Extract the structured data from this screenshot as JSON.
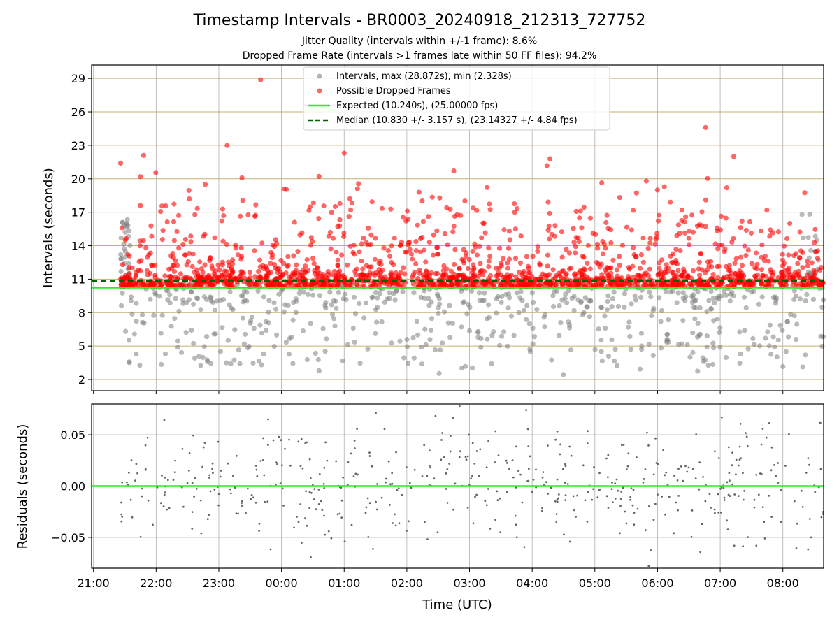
{
  "chart_data": [
    {
      "type": "scatter",
      "title": "Timestamp Intervals - BR0003_20240918_212313_727752",
      "subtitle_lines": [
        "Jitter Quality (intervals within +/-1 frame): 8.6%",
        "Dropped Frame Rate (intervals >1 frames late within 50 FF files): 94.2%"
      ],
      "ylabel": "Intervals (seconds)",
      "ylim": [
        1.0,
        30.2
      ],
      "yticks": [
        2,
        5,
        8,
        11,
        14,
        17,
        20,
        23,
        26,
        29
      ],
      "ytick_labels": [
        "2",
        "5",
        "8",
        "11",
        "14",
        "17",
        "20",
        "23",
        "26",
        "29"
      ],
      "xlim_hours": [
        -0.03,
        11.65
      ],
      "x_origin": "2024-09-18 21:00 UTC",
      "grid": true,
      "legend_position": "top-center",
      "legend": [
        "Intervals, max (28.872s), min (2.328s)",
        "Possible Dropped Frames",
        "Expected (10.240s), (25.00000 fps)",
        "Median (10.830 +/- 3.157 s), (23.14327 +/- 4.84 fps)"
      ],
      "series": [
        {
          "kind": "scatter",
          "color": "#808080",
          "values_summary": {
            "max": 28.872,
            "min": 2.328
          },
          "note": "dense scatter of intervals between 2 and 21 s spanning 21:26 to 08:38"
        },
        {
          "kind": "scatter",
          "color": "#ff0000",
          "note": "dense scatter of intervals mostly between 10.2 and 22 s"
        },
        {
          "kind": "hline",
          "color": "#22ee22",
          "y": 10.24
        },
        {
          "kind": "hline",
          "color": "#006400",
          "dashed": true,
          "y": 10.83
        }
      ],
      "outliers": [
        {
          "x_time": "23:40",
          "y": 28.87
        },
        {
          "x_time": "06:46",
          "y": 24.6
        },
        {
          "x_time": "23:08",
          "y": 22.98
        },
        {
          "x_time": "01:00",
          "y": 22.3
        },
        {
          "x_time": "21:48",
          "y": 22.1
        },
        {
          "x_time": "07:13",
          "y": 22.0
        },
        {
          "x_time": "04:17",
          "y": 21.8
        },
        {
          "x_time": "21:26",
          "y": 21.4
        }
      ]
    },
    {
      "type": "scatter",
      "ylabel": "Residuals (seconds)",
      "xlabel": "Time (UTC)",
      "ylim": [
        -0.08,
        0.08
      ],
      "yticks": [
        -0.05,
        0.0,
        0.05
      ],
      "ytick_labels": [
        "−0.05",
        "0.00",
        "0.05"
      ],
      "xticks_labels": [
        "21:00",
        "22:00",
        "23:00",
        "00:00",
        "01:00",
        "02:00",
        "03:00",
        "04:00",
        "05:00",
        "06:00",
        "07:00",
        "08:00"
      ],
      "grid": true,
      "series": [
        {
          "kind": "scatter",
          "color": "#666666",
          "note": "residual points scattered around zero between -0.08 and 0.08 s"
        },
        {
          "kind": "hline",
          "color": "#22ee22",
          "y": 0.0
        }
      ]
    }
  ]
}
